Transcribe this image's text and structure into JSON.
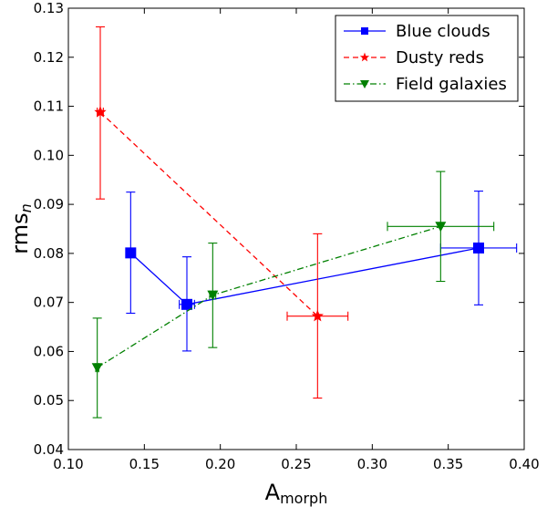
{
  "chart_data": {
    "type": "scatter",
    "title": "",
    "xlabel": {
      "main": "A",
      "sub": "morph"
    },
    "ylabel": {
      "main": "rms",
      "sub": "n"
    },
    "xlim": [
      0.1,
      0.4
    ],
    "ylim": [
      0.04,
      0.13
    ],
    "xticks": [
      "0.10",
      "0.15",
      "0.20",
      "0.25",
      "0.30",
      "0.35",
      "0.40"
    ],
    "yticks": [
      "0.04",
      "0.05",
      "0.06",
      "0.07",
      "0.08",
      "0.09",
      "0.10",
      "0.11",
      "0.12",
      "0.13"
    ],
    "legend_position": "top-right",
    "series": [
      {
        "name": "Blue clouds",
        "color": "#0000ff",
        "marker": "square",
        "line": "solid",
        "points": [
          {
            "x": 0.141,
            "y": 0.0801,
            "xerr": 0.001,
            "yerr_low": 0.0123,
            "yerr_high": 0.0124
          },
          {
            "x": 0.178,
            "y": 0.0696,
            "xerr": 0.005,
            "yerr_low": 0.0095,
            "yerr_high": 0.0097
          },
          {
            "x": 0.37,
            "y": 0.0811,
            "xerr": 0.025,
            "yerr_low": 0.0116,
            "yerr_high": 0.0116
          }
        ]
      },
      {
        "name": "Dusty reds",
        "color": "#ff0000",
        "marker": "star",
        "line": "dashed",
        "points": [
          {
            "x": 0.121,
            "y": 0.1088,
            "xerr": 0.002,
            "yerr_low": 0.0177,
            "yerr_high": 0.0174
          },
          {
            "x": 0.264,
            "y": 0.0672,
            "xerr": 0.02,
            "yerr_low": 0.0167,
            "yerr_high": 0.0168
          }
        ]
      },
      {
        "name": "Field galaxies",
        "color": "#008000",
        "marker": "triangle-down",
        "line": "dashdot",
        "points": [
          {
            "x": 0.119,
            "y": 0.0567,
            "xerr": 0.001,
            "yerr_low": 0.0102,
            "yerr_high": 0.0101
          },
          {
            "x": 0.195,
            "y": 0.0715,
            "xerr": 0.002,
            "yerr_low": 0.0107,
            "yerr_high": 0.0106
          },
          {
            "x": 0.345,
            "y": 0.0855,
            "xerr": 0.035,
            "yerr_low": 0.0112,
            "yerr_high": 0.0112
          }
        ]
      }
    ]
  }
}
